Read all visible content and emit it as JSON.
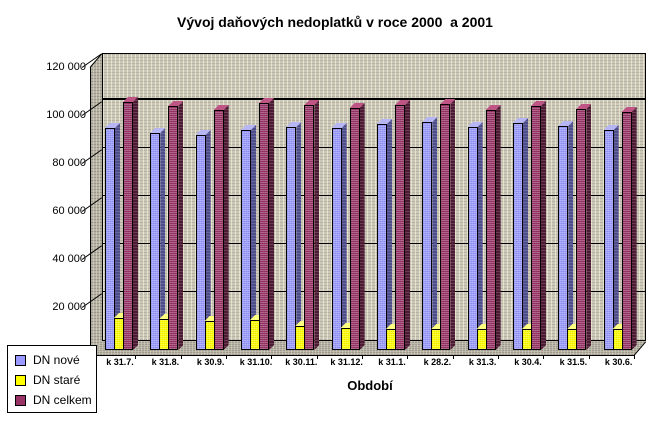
{
  "chart_data": {
    "type": "bar",
    "subtype": "3d-clustered-column",
    "title": "Vývoj daňových nedoplatků v roce 2000  a 2001",
    "xlabel": "Období",
    "ylabel": "",
    "categories": [
      "k 31.7.",
      "k 31.8.",
      "k 30.9.",
      "k 31.10.",
      "k 30.11.",
      "k 31.12.",
      "k 31.1.",
      "k 28.2.",
      "k 31.3.",
      "k 30.4.",
      "k 31.5.",
      "k 30.6."
    ],
    "series": [
      {
        "name": "DN nové",
        "color": "#9999FF",
        "color_side": "#4D4D8C",
        "color_top": "#B6B6F5",
        "values": [
          92500,
          90500,
          89500,
          91500,
          93000,
          92500,
          94000,
          95000,
          93000,
          94500,
          93500,
          91500
        ]
      },
      {
        "name": "DN staré",
        "color": "#FFFF00",
        "color_side": "#8C8C00",
        "color_top": "#FFFF80",
        "values": [
          13500,
          13000,
          12000,
          12500,
          10000,
          9000,
          8800,
          8800,
          8800,
          8800,
          8800,
          8800
        ]
      },
      {
        "name": "DN celkem",
        "color": "#993366",
        "color_side": "#4D1A33",
        "color_top": "#BE5585",
        "values": [
          103500,
          101500,
          100000,
          103000,
          102000,
          101000,
          102000,
          102500,
          100000,
          101500,
          100500,
          99000
        ]
      }
    ],
    "ylim": [
      0,
      120000
    ],
    "ytick_interval": 20000,
    "yticks": [
      {
        "value": 20000,
        "label": "20 000"
      },
      {
        "value": 40000,
        "label": "40 000"
      },
      {
        "value": 60000,
        "label": "60 000"
      },
      {
        "value": 80000,
        "label": "80 000"
      },
      {
        "value": 100000,
        "label": "100 000"
      },
      {
        "value": 120000,
        "label": "120 000"
      }
    ],
    "emphasized_gridline": 100000,
    "grid": true,
    "legend_position": "bottom-left",
    "wall_color": "#CBC7B9",
    "gridline_color": "#000000"
  }
}
